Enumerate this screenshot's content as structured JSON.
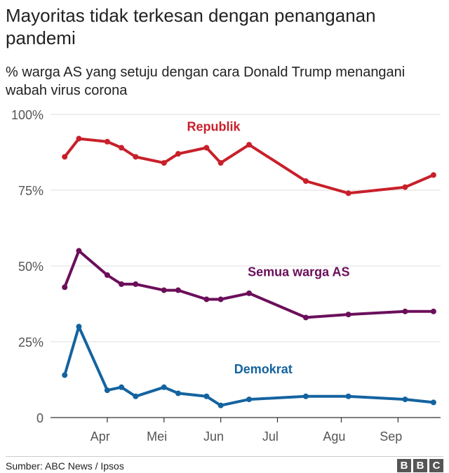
{
  "title": "Mayoritas tidak terkesan dengan penanganan pandemi",
  "subtitle": "% warga AS yang setuju dengan cara Donald Trump menangani wabah virus corona",
  "source": "Sumber: ABC News / Ipsos",
  "logo_letters": [
    "B",
    "B",
    "C"
  ],
  "chart_data": {
    "type": "line",
    "ylim": [
      0,
      100
    ],
    "y_ticks": [
      {
        "value": 0,
        "label": "0"
      },
      {
        "value": 25,
        "label": "25%"
      },
      {
        "value": 50,
        "label": "50%"
      },
      {
        "value": 75,
        "label": "75%"
      },
      {
        "value": 100,
        "label": "100%"
      }
    ],
    "x_ticks": [
      {
        "x": 2.5,
        "label": "Apr"
      },
      {
        "x": 6.5,
        "label": "Mei"
      },
      {
        "x": 10.5,
        "label": "Jun"
      },
      {
        "x": 14.5,
        "label": "Jul"
      },
      {
        "x": 19,
        "label": "Agu"
      },
      {
        "x": 23,
        "label": "Sep"
      }
    ],
    "x_ticks_marks": [
      3,
      7,
      11,
      15,
      19.5,
      23.5
    ],
    "xlim": [
      -1,
      26.5
    ],
    "grid": true,
    "series": [
      {
        "name": "Republik",
        "color": "#c8202a",
        "label_at": [
          10.5,
          96
        ],
        "x": [
          0,
          1,
          3,
          4,
          5,
          7,
          8,
          10,
          11,
          13,
          17,
          20,
          24,
          26
        ],
        "values": [
          86,
          92,
          91,
          89,
          86,
          84,
          87,
          89,
          84,
          90,
          78,
          74,
          76,
          80
        ]
      },
      {
        "name": "Semua warga AS",
        "color": "#6b0f5a",
        "label_at": [
          16.5,
          48
        ],
        "x": [
          0,
          1,
          3,
          4,
          5,
          7,
          8,
          10,
          11,
          13,
          17,
          20,
          24,
          26
        ],
        "values": [
          43,
          55,
          47,
          44,
          44,
          42,
          42,
          39,
          39,
          41,
          33,
          34,
          35,
          35
        ]
      },
      {
        "name": "Demokrat",
        "color": "#1463a0",
        "label_at": [
          14,
          16
        ],
        "x": [
          0,
          1,
          3,
          4,
          5,
          7,
          8,
          10,
          11,
          13,
          17,
          20,
          24,
          26
        ],
        "values": [
          14,
          30,
          9,
          10,
          7,
          10,
          8,
          7,
          4,
          6,
          7,
          7,
          6,
          5
        ]
      }
    ]
  }
}
